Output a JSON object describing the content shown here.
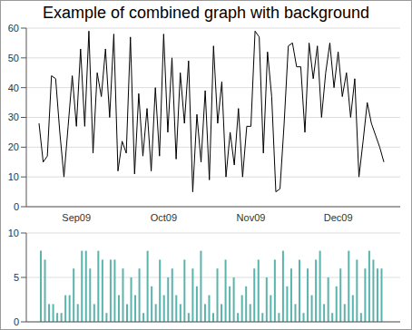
{
  "chart_data": [
    {
      "type": "line",
      "title": "Example of combined graph with background",
      "categories": [
        null,
        null,
        null,
        null,
        null,
        null,
        null,
        null,
        null,
        "Sep09",
        null,
        null,
        null,
        null,
        null,
        null,
        null,
        null,
        null,
        null,
        null,
        null,
        null,
        null,
        null,
        null,
        null,
        null,
        null,
        null,
        "Oct09",
        null,
        null,
        null,
        null,
        null,
        null,
        null,
        null,
        null,
        null,
        null,
        null,
        null,
        null,
        null,
        null,
        null,
        null,
        null,
        null,
        "Nov09",
        null,
        null,
        null,
        null,
        null,
        null,
        null,
        null,
        null,
        null,
        null,
        null,
        null,
        null,
        null,
        null,
        null,
        null,
        null,
        null,
        "Dec09",
        null,
        null,
        null,
        null,
        null,
        null,
        null,
        null,
        null,
        null,
        null
      ],
      "values": [
        28,
        15,
        17,
        44,
        43,
        25,
        10,
        27,
        44,
        27,
        53,
        27,
        59,
        18,
        45,
        37,
        53,
        30,
        58,
        12,
        22,
        18,
        57,
        11,
        38,
        17,
        33,
        12,
        40,
        17,
        58,
        25,
        50,
        16,
        45,
        28,
        49,
        5,
        31,
        15,
        39,
        9,
        54,
        28,
        42,
        10,
        25,
        14,
        33,
        10,
        27,
        27,
        59,
        57,
        18,
        52,
        37,
        5,
        6,
        28,
        54,
        55,
        47,
        47,
        25,
        55,
        43,
        54,
        30,
        45,
        55,
        40,
        52,
        37,
        45,
        30,
        43,
        10,
        22,
        35,
        28,
        24,
        20,
        15
      ],
      "color": "#000000",
      "ylim": [
        0,
        60
      ],
      "yticks": [
        0,
        10,
        20,
        30,
        40,
        50,
        60
      ],
      "grid": true
    },
    {
      "type": "bar",
      "values": [
        8,
        7,
        2,
        2,
        1,
        1,
        3,
        3,
        6,
        2,
        8,
        8,
        6,
        2,
        8,
        7,
        1,
        7,
        7,
        3,
        6,
        2,
        5,
        3,
        6,
        1,
        8,
        4,
        2,
        7,
        3,
        5,
        6,
        3,
        2,
        7,
        1,
        6,
        4,
        8,
        2,
        3,
        1,
        6,
        2,
        7,
        4,
        5,
        1,
        3,
        4,
        2,
        6,
        7,
        1,
        5,
        3,
        7,
        1,
        8,
        4,
        6,
        2,
        7,
        1,
        6,
        3,
        7,
        8,
        2,
        5,
        1,
        4,
        6,
        2,
        8,
        3,
        7,
        1,
        6,
        8,
        7,
        6,
        6
      ],
      "color": "#5ab4ac",
      "ylim": [
        0,
        10
      ],
      "yticks": [
        0,
        5,
        10
      ],
      "grid": true,
      "tick_labels": "y"
    }
  ]
}
